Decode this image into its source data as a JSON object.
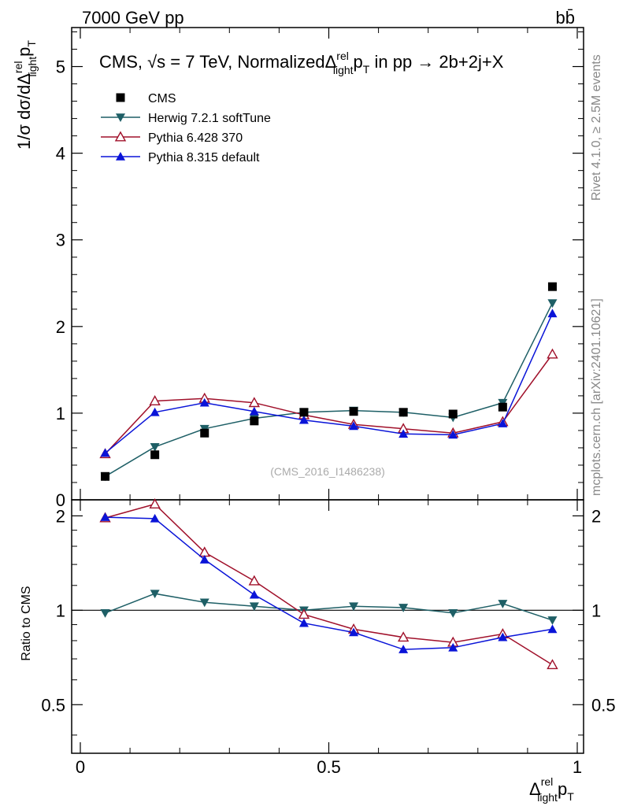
{
  "header": {
    "energy_label": "7000 GeV pp",
    "process_label": "bb̄"
  },
  "side_labels": {
    "rivet": "Rivet 4.1.0, ≥ 2.5M events",
    "mcplots": "mcplots.cern.ch [arXiv:2401.10621]"
  },
  "chart_data": [
    {
      "type": "scatter",
      "panel": "main",
      "title_parts": {
        "prefix": "CMS, √s = 7 TeV, Normalized",
        "delta": "Δ",
        "sup": "rel",
        "sub": "light",
        "var": "p",
        "var_sub": "T",
        "suffix": " in pp →  2b+2j+X"
      },
      "ylabel": "1/σ dσ/dΔ",
      "ylabel_sup": "rel",
      "ylabel_sub": "light",
      "ylabel_var": "p",
      "ylabel_var_sub": "T",
      "watermark": "(CMS_2016_I1486238)",
      "xlim": [
        0,
        1
      ],
      "ylim": [
        0,
        5.45
      ],
      "yticks": [
        0,
        1,
        2,
        3,
        4,
        5
      ],
      "x": [
        0.05,
        0.15,
        0.25,
        0.35,
        0.45,
        0.55,
        0.65,
        0.75,
        0.85,
        0.95
      ],
      "series": [
        {
          "name": "CMS",
          "color": "#000000",
          "marker": "square",
          "line": false,
          "values": [
            0.27,
            0.52,
            0.77,
            0.91,
            1.01,
            1.02,
            1.01,
            0.99,
            1.07,
            2.46
          ]
        },
        {
          "name": "Herwig 7.2.1 softTune",
          "color": "#1e5f66",
          "marker": "triangle-down",
          "line": true,
          "values": [
            0.27,
            0.61,
            0.82,
            0.94,
            1.01,
            1.03,
            1.01,
            0.95,
            1.12,
            2.27
          ]
        },
        {
          "name": "Pythia 6.428 370",
          "color": "#a0102a",
          "marker": "triangle-up-open",
          "line": true,
          "values": [
            0.53,
            1.14,
            1.17,
            1.12,
            0.98,
            0.87,
            0.82,
            0.77,
            0.9,
            1.68
          ]
        },
        {
          "name": "Pythia 8.315 default",
          "color": "#0a14d8",
          "marker": "triangle-up",
          "line": true,
          "values": [
            0.54,
            1.01,
            1.12,
            1.02,
            0.92,
            0.85,
            0.76,
            0.75,
            0.88,
            2.15
          ]
        }
      ]
    },
    {
      "type": "line",
      "panel": "ratio",
      "ylabel": "Ratio to CMS",
      "xlabel_delta": "Δ",
      "xlabel_sup": "rel",
      "xlabel_sub": "light",
      "xlabel_var": "p",
      "xlabel_var_sub": "T",
      "xlim": [
        0,
        1
      ],
      "ylim": [
        0.35,
        2.25
      ],
      "yscale": "log",
      "yticks": [
        0.5,
        1,
        2
      ],
      "ytick_labels": [
        "0.5",
        "1",
        "2"
      ],
      "xticks": [
        0,
        0.5,
        1
      ],
      "xtick_labels": [
        "0",
        "0.5",
        "1"
      ],
      "reference_line": 1,
      "x": [
        0.05,
        0.15,
        0.25,
        0.35,
        0.45,
        0.55,
        0.65,
        0.75,
        0.85,
        0.95
      ],
      "series": [
        {
          "name": "Herwig 7.2.1 softTune",
          "color": "#1e5f66",
          "marker": "triangle-down",
          "values": [
            0.98,
            1.13,
            1.06,
            1.03,
            1.0,
            1.03,
            1.02,
            0.98,
            1.05,
            0.93
          ]
        },
        {
          "name": "Pythia 6.428 370",
          "color": "#a0102a",
          "marker": "triangle-up-open",
          "values": [
            1.97,
            2.18,
            1.53,
            1.24,
            0.97,
            0.87,
            0.82,
            0.79,
            0.84,
            0.67
          ]
        },
        {
          "name": "Pythia 8.315 default",
          "color": "#0a14d8",
          "marker": "triangle-up",
          "values": [
            1.98,
            1.96,
            1.45,
            1.12,
            0.91,
            0.85,
            0.75,
            0.76,
            0.82,
            0.87
          ]
        }
      ]
    }
  ]
}
